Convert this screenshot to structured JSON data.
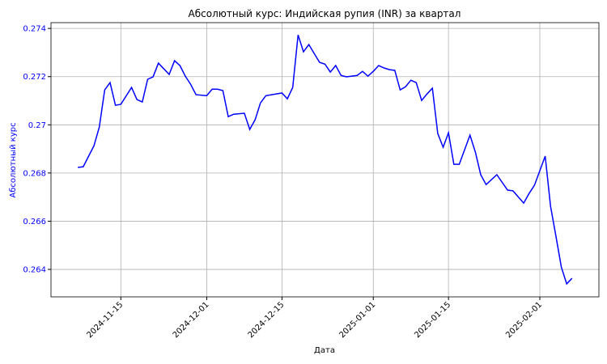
{
  "chart_data": {
    "type": "line",
    "title": "Абсолютный курс: Индийская рупия (INR) за квартал",
    "x_label": "Дата",
    "y_label": "Абсолютный курс",
    "x": [
      "2024-11-07",
      "2024-11-08",
      "2024-11-10",
      "2024-11-11",
      "2024-11-12",
      "2024-11-13",
      "2024-11-14",
      "2024-11-15",
      "2024-11-17",
      "2024-11-18",
      "2024-11-19",
      "2024-11-20",
      "2024-11-21",
      "2024-11-22",
      "2024-11-24",
      "2024-11-25",
      "2024-11-26",
      "2024-11-27",
      "2024-11-28",
      "2024-11-29",
      "2024-12-01",
      "2024-12-02",
      "2024-12-03",
      "2024-12-04",
      "2024-12-05",
      "2024-12-06",
      "2024-12-08",
      "2024-12-09",
      "2024-12-10",
      "2024-12-11",
      "2024-12-12",
      "2024-12-15",
      "2024-12-16",
      "2024-12-17",
      "2024-12-18",
      "2024-12-19",
      "2024-12-20",
      "2024-12-21",
      "2024-12-22",
      "2024-12-23",
      "2024-12-24",
      "2024-12-25",
      "2024-12-26",
      "2024-12-27",
      "2024-12-29",
      "2024-12-30",
      "2024-12-31",
      "2025-01-01",
      "2025-01-02",
      "2025-01-03",
      "2025-01-04",
      "2025-01-05",
      "2025-01-06",
      "2025-01-07",
      "2025-01-08",
      "2025-01-09",
      "2025-01-10",
      "2025-01-11",
      "2025-01-12",
      "2025-01-13",
      "2025-01-14",
      "2025-01-15",
      "2025-01-16",
      "2025-01-17",
      "2025-01-19",
      "2025-01-20",
      "2025-01-21",
      "2025-01-22",
      "2025-01-24",
      "2025-01-26",
      "2025-01-27",
      "2025-01-29",
      "2025-01-30",
      "2025-01-31",
      "2025-02-02",
      "2025-02-03",
      "2025-02-04",
      "2025-02-05",
      "2025-02-06",
      "2025-02-07"
    ],
    "series": [
      {
        "name": "INR",
        "color": "#0000ff",
        "values": [
          0.26823,
          0.26826,
          0.26913,
          0.26991,
          0.27145,
          0.27175,
          0.27081,
          0.27085,
          0.27155,
          0.27105,
          0.27095,
          0.27189,
          0.27199,
          0.27256,
          0.27209,
          0.27266,
          0.27246,
          0.27202,
          0.27168,
          0.27125,
          0.27121,
          0.27148,
          0.27148,
          0.27142,
          0.27034,
          0.27044,
          0.27048,
          0.26981,
          0.27021,
          0.27091,
          0.27121,
          0.27132,
          0.27108,
          0.27155,
          0.27373,
          0.27303,
          0.27333,
          0.27296,
          0.27259,
          0.27252,
          0.27219,
          0.27246,
          0.27205,
          0.27199,
          0.27205,
          0.27222,
          0.27202,
          0.27222,
          0.27246,
          0.27236,
          0.27229,
          0.27226,
          0.27145,
          0.27158,
          0.27185,
          0.27175,
          0.27101,
          0.27128,
          0.27152,
          0.26964,
          0.26907,
          0.26967,
          0.26836,
          0.26836,
          0.26957,
          0.26887,
          0.26793,
          0.26752,
          0.26793,
          0.26729,
          0.26726,
          0.26675,
          0.26715,
          0.26749,
          0.2687,
          0.26662,
          0.26538,
          0.2641,
          0.2634,
          0.26363
        ]
      }
    ],
    "xlim": [
      "2024-11-02",
      "2025-02-12"
    ],
    "xticks": [
      "2024-11-15",
      "2024-12-01",
      "2024-12-15",
      "2025-01-01",
      "2025-01-15",
      "2025-02-01"
    ],
    "ylim": [
      0.26286,
      0.27424
    ],
    "yticks": [
      0.264,
      0.266,
      0.268,
      0.27,
      0.272,
      0.274
    ],
    "grid": true
  }
}
